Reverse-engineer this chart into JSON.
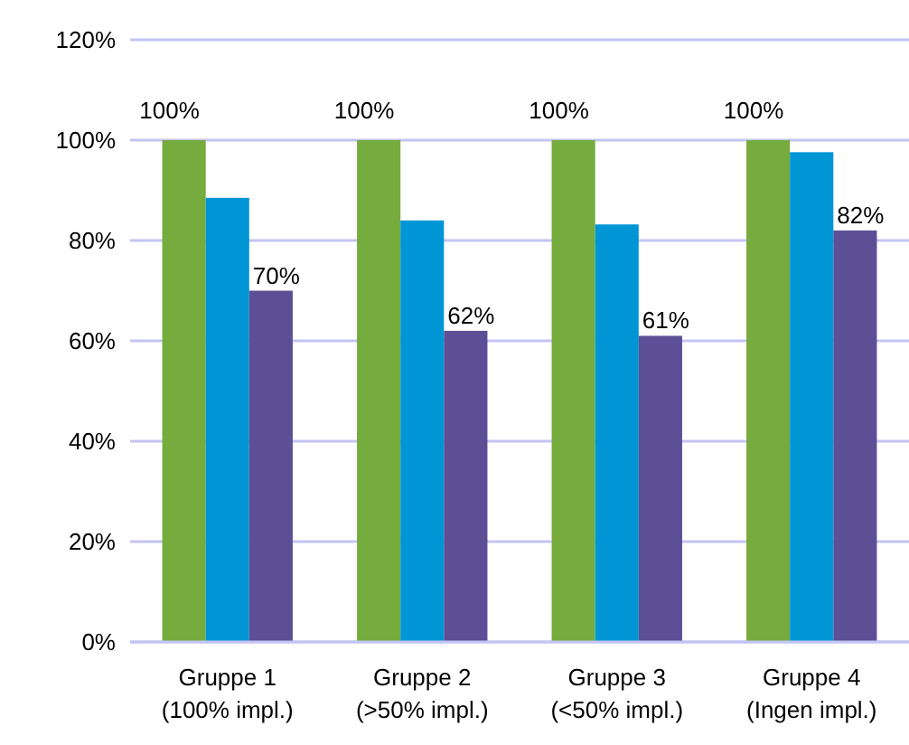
{
  "chart_data": {
    "type": "bar",
    "categories": [
      "Gruppe 1\n(100% impl.)",
      "Gruppe 2\n(>50% impl.)",
      "Gruppe 3\n(<50% impl.)",
      "Gruppe 4\n(Ingen impl.)"
    ],
    "series": [
      {
        "color": "#76ab3e",
        "values": [
          100,
          100,
          100,
          100
        ],
        "value_labels": [
          "100%",
          "100%",
          "100%",
          "100%"
        ]
      },
      {
        "color": "#0096d6",
        "values": [
          88.5,
          84,
          83.2,
          97.6
        ]
      },
      {
        "color": "#5c4f96",
        "values": [
          70,
          62,
          61,
          82
        ],
        "value_labels": [
          "70%",
          "62%",
          "61%",
          "82%"
        ]
      }
    ],
    "ylim": [
      0,
      120
    ],
    "yticks": [
      {
        "value": 0,
        "label": "0%"
      },
      {
        "value": 20,
        "label": "20%"
      },
      {
        "value": 40,
        "label": "40%"
      },
      {
        "value": 60,
        "label": "60%"
      },
      {
        "value": 80,
        "label": "80%"
      },
      {
        "value": 100,
        "label": "100%"
      },
      {
        "value": 120,
        "label": "120%"
      }
    ],
    "grid": "y"
  }
}
